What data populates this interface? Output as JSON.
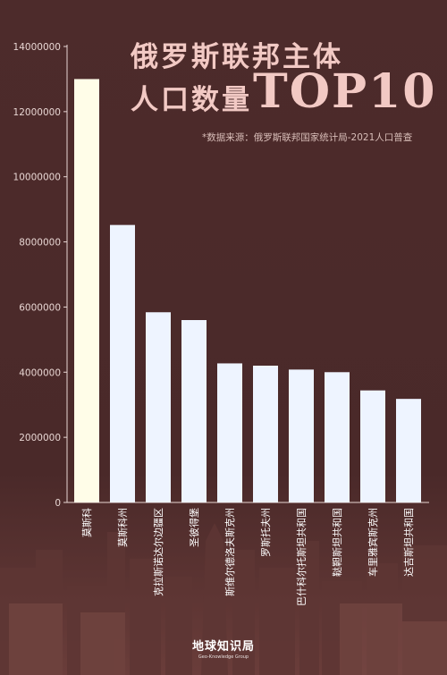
{
  "title": {
    "line1": "俄罗斯联邦主体",
    "line2": "人口数量",
    "line3": "TOP10"
  },
  "source": "*数据来源：俄罗斯联邦国家统计局-2021人口普查",
  "logo": {
    "name_cn": "地球知识局",
    "name_en": "Geo-Knowledge Group"
  },
  "colors": {
    "highlight_bar": "#fffde8",
    "bar": "#eef4ff",
    "background": "#4b2a2a"
  },
  "chart_data": {
    "type": "bar",
    "categories": [
      "莫斯科",
      "莫斯科州",
      "克拉斯诺达尔边疆区",
      "圣彼得堡",
      "斯维尔德洛夫斯克州",
      "罗斯托夫州",
      "巴什科尔托斯坦共和国",
      "鞑靼斯坦共和国",
      "车里雅宾斯克州",
      "达吉斯坦共和国"
    ],
    "values": [
      13000000,
      8520000,
      5840000,
      5600000,
      4270000,
      4200000,
      4080000,
      4000000,
      3440000,
      3180000
    ],
    "yticks": [
      "0",
      "2000000",
      "4000000",
      "6000000",
      "8000000",
      "10000000",
      "12000000",
      "14000000"
    ],
    "ylim": [
      0,
      14000000
    ],
    "highlight_index": 0,
    "xlabel": "",
    "ylabel": ""
  }
}
